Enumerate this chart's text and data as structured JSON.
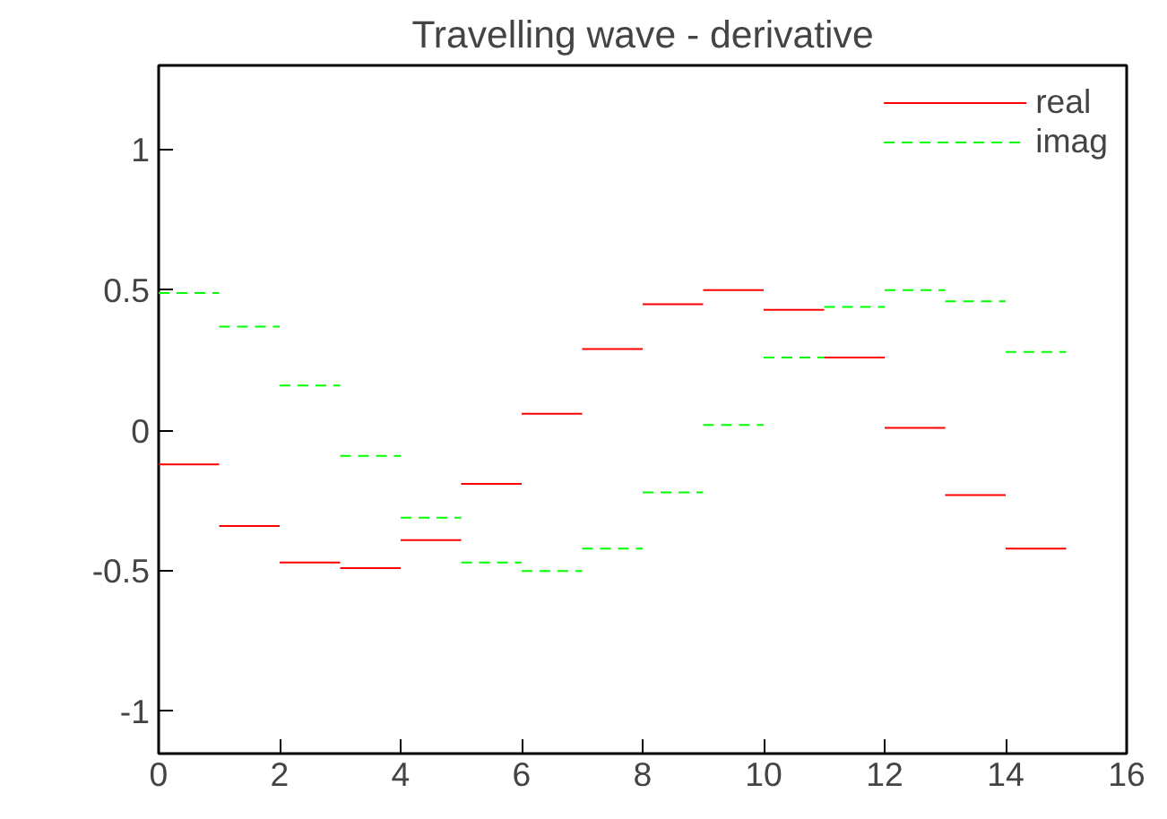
{
  "chart_data": {
    "type": "step",
    "title": "Travelling wave - derivative",
    "x": [
      0,
      1,
      2,
      3,
      4,
      5,
      6,
      7,
      8,
      9,
      10,
      11,
      12,
      13,
      14,
      15
    ],
    "series": [
      {
        "name": "real",
        "color": "#ff0000",
        "line_style": "solid",
        "values": [
          -0.12,
          -0.34,
          -0.47,
          -0.49,
          -0.39,
          -0.19,
          0.06,
          0.29,
          0.45,
          0.5,
          0.43,
          0.26,
          0.01,
          -0.23,
          -0.42,
          -0.42
        ]
      },
      {
        "name": "imag",
        "color": "#00ff00",
        "line_style": "dashed",
        "values": [
          0.49,
          0.37,
          0.16,
          -0.09,
          -0.31,
          -0.47,
          -0.5,
          -0.42,
          -0.22,
          0.02,
          0.26,
          0.44,
          0.5,
          0.46,
          0.28,
          0.28
        ]
      }
    ],
    "xlim": [
      0,
      16
    ],
    "xticks": [
      0,
      2,
      4,
      6,
      8,
      10,
      12,
      14,
      16
    ],
    "ylim": [
      -1.15,
      1.3
    ],
    "yticks": [
      -1,
      -0.5,
      0,
      0.5,
      1
    ],
    "grid": false,
    "legend": "top right"
  }
}
